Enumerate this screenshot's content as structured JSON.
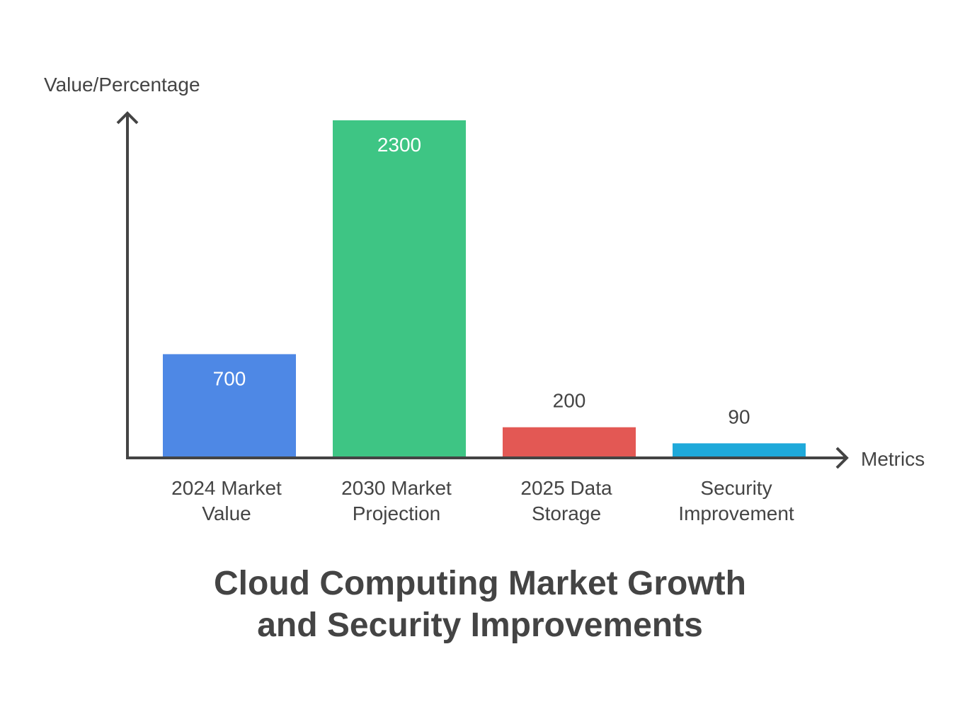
{
  "chart_data": {
    "type": "bar",
    "title": [
      "Cloud Computing Market Growth",
      "and Security Improvements"
    ],
    "xlabel": "Metrics",
    "ylabel": "Value/Percentage",
    "categories": [
      [
        "2024 Market",
        "Value"
      ],
      [
        "2030 Market",
        "Projection"
      ],
      [
        "2025 Data",
        "Storage"
      ],
      [
        "Security",
        "Improvement"
      ]
    ],
    "values": [
      700,
      2300,
      200,
      90
    ],
    "value_labels": [
      "700",
      "2300",
      "200",
      "90"
    ],
    "colors": [
      "#4E88E5",
      "#3EC584",
      "#E35854",
      "#1FA9DA"
    ],
    "ylim": [
      0,
      2300
    ],
    "grid": false,
    "legend": "none"
  }
}
